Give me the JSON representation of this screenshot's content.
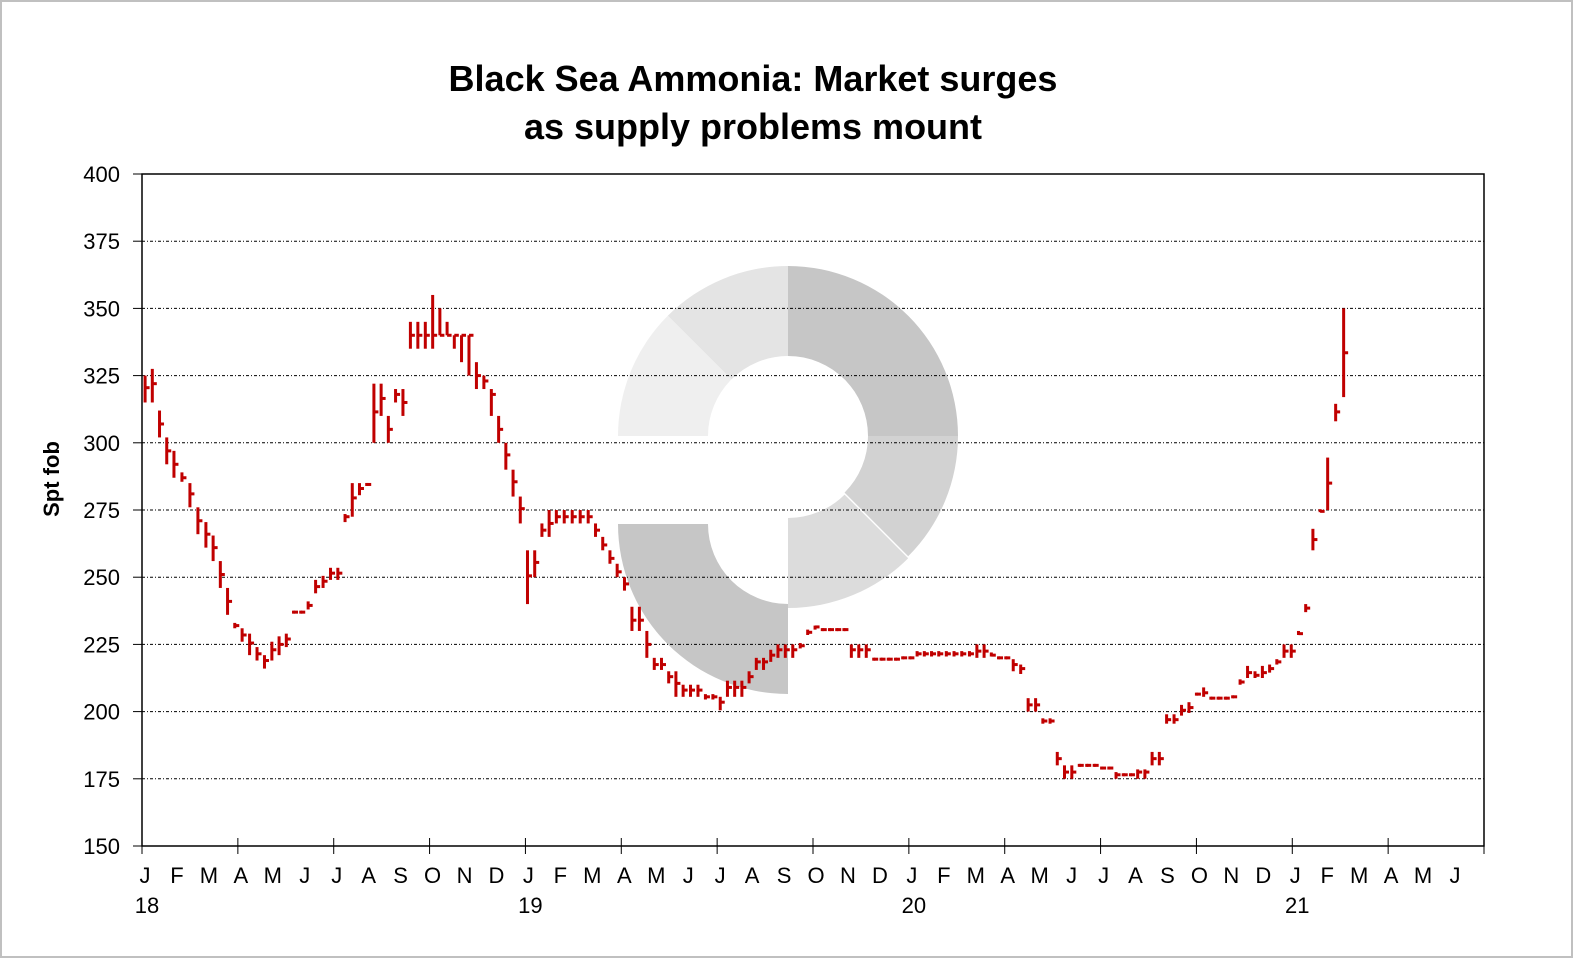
{
  "chart_data": {
    "type": "bar",
    "subtype": "high-low-close",
    "title_lines": [
      "Black Sea Ammonia: Market surges",
      "as supply problems mount"
    ],
    "ylabel": "Spt fob",
    "xlabel": "",
    "ylim": [
      150,
      400
    ],
    "yticks": [
      150,
      175,
      200,
      225,
      250,
      275,
      300,
      325,
      350,
      375,
      400
    ],
    "xlim": [
      "2018-01-01",
      "2021-07-01"
    ],
    "x_month_labels": [
      "J",
      "F",
      "M",
      "A",
      "M",
      "J",
      "J",
      "A",
      "S",
      "O",
      "N",
      "D",
      "J",
      "F",
      "M",
      "A",
      "M",
      "J",
      "J",
      "A",
      "S",
      "O",
      "N",
      "D",
      "J",
      "F",
      "M",
      "A",
      "M",
      "J",
      "J",
      "A",
      "S",
      "O",
      "N",
      "D",
      "J",
      "F",
      "M",
      "A",
      "M",
      "J"
    ],
    "x_year_labels": [
      {
        "month_index": 0,
        "label": "18"
      },
      {
        "month_index": 12,
        "label": "19"
      },
      {
        "month_index": 24,
        "label": "20"
      },
      {
        "month_index": 36,
        "label": "21"
      }
    ],
    "grid": "horizontal dotted",
    "legend": "none",
    "colors": {
      "bars": "#c00000",
      "grid": "#000000",
      "watermark": [
        "#c6c6c6",
        "#d2d2d2",
        "#dcdcdc",
        "#e4e4e4",
        "#efefef"
      ]
    },
    "columns": [
      "date",
      "low",
      "high",
      "mid"
    ],
    "bars": [
      [
        "2018-01-04",
        315,
        325,
        320.5
      ],
      [
        "2018-01-11",
        315,
        327.5,
        322
      ],
      [
        "2018-01-18",
        302,
        312,
        307
      ],
      [
        "2018-01-25",
        292,
        302,
        297
      ],
      [
        "2018-02-01",
        287,
        297,
        292
      ],
      [
        "2018-02-08",
        285.5,
        289,
        287
      ],
      [
        "2018-02-15",
        276,
        285,
        281
      ],
      [
        "2018-02-22",
        266,
        276,
        271
      ],
      [
        "2018-03-01",
        261,
        270.5,
        266
      ],
      [
        "2018-03-08",
        256,
        265.5,
        261
      ],
      [
        "2018-03-15",
        246,
        256,
        251
      ],
      [
        "2018-03-22",
        236,
        246,
        241
      ],
      [
        "2018-03-29",
        231,
        233,
        232
      ],
      [
        "2018-04-05",
        226,
        231,
        228.5
      ],
      [
        "2018-04-12",
        221,
        229,
        225.5
      ],
      [
        "2018-04-19",
        219,
        224,
        221.5
      ],
      [
        "2018-04-26",
        216,
        221,
        219
      ],
      [
        "2018-05-03",
        219,
        226,
        223
      ],
      [
        "2018-05-10",
        221,
        228,
        225
      ],
      [
        "2018-05-17",
        224,
        229,
        227
      ],
      [
        "2018-05-24",
        237,
        237,
        237
      ],
      [
        "2018-05-31",
        237,
        237,
        237
      ],
      [
        "2018-06-07",
        238,
        241,
        239.5
      ],
      [
        "2018-06-14",
        244,
        249,
        246.5
      ],
      [
        "2018-06-21",
        246,
        250.5,
        248.5
      ],
      [
        "2018-06-28",
        249,
        253.5,
        251.5
      ],
      [
        "2018-07-05",
        249,
        253.5,
        251.5
      ],
      [
        "2018-07-12",
        270.5,
        273.5,
        272.5
      ],
      [
        "2018-07-19",
        272.5,
        285,
        279.5
      ],
      [
        "2018-07-26",
        280.5,
        285,
        283
      ],
      [
        "2018-08-02",
        284,
        285,
        284.5
      ],
      [
        "2018-08-09",
        300,
        322,
        311.5
      ],
      [
        "2018-08-16",
        310,
        322,
        316.5
      ],
      [
        "2018-08-23",
        300,
        310,
        305
      ],
      [
        "2018-08-30",
        315,
        320,
        318
      ],
      [
        "2018-09-06",
        310,
        320,
        315
      ],
      [
        "2018-09-13",
        335,
        345,
        340
      ],
      [
        "2018-09-20",
        335,
        345,
        340
      ],
      [
        "2018-09-27",
        335,
        345,
        340
      ],
      [
        "2018-10-04",
        335,
        355,
        340
      ],
      [
        "2018-10-11",
        340,
        350,
        340
      ],
      [
        "2018-10-18",
        340,
        345,
        340
      ],
      [
        "2018-10-25",
        335,
        340,
        340
      ],
      [
        "2018-11-01",
        330,
        340,
        340
      ],
      [
        "2018-11-08",
        325,
        340,
        340
      ],
      [
        "2018-11-15",
        320,
        330,
        325
      ],
      [
        "2018-11-22",
        320,
        325,
        323
      ],
      [
        "2018-11-29",
        310,
        320,
        318
      ],
      [
        "2018-12-06",
        300,
        310,
        305
      ],
      [
        "2018-12-13",
        290,
        300,
        295.5
      ],
      [
        "2018-12-20",
        280,
        290,
        285.5
      ],
      [
        "2018-12-27",
        270,
        280,
        275.5
      ],
      [
        "2019-01-03",
        240,
        260,
        250.5
      ],
      [
        "2019-01-10",
        250,
        260,
        255.5
      ],
      [
        "2019-01-17",
        265,
        270,
        267.5
      ],
      [
        "2019-01-24",
        265,
        275,
        270
      ],
      [
        "2019-01-31",
        270,
        275,
        272.5
      ],
      [
        "2019-02-07",
        270,
        275,
        272.5
      ],
      [
        "2019-02-14",
        270,
        275,
        272.5
      ],
      [
        "2019-02-21",
        270,
        275,
        272.5
      ],
      [
        "2019-02-28",
        270,
        275,
        272.5
      ],
      [
        "2019-03-07",
        265,
        270,
        267.5
      ],
      [
        "2019-03-14",
        260,
        265,
        262
      ],
      [
        "2019-03-21",
        255,
        260,
        257
      ],
      [
        "2019-03-28",
        250,
        255,
        252
      ],
      [
        "2019-04-04",
        245,
        250,
        247.5
      ],
      [
        "2019-04-11",
        230,
        239,
        234
      ],
      [
        "2019-04-18",
        230,
        239,
        234
      ],
      [
        "2019-04-25",
        220,
        230,
        225
      ],
      [
        "2019-05-02",
        215.5,
        220,
        217.5
      ],
      [
        "2019-05-09",
        215.5,
        220,
        217.5
      ],
      [
        "2019-05-16",
        210.5,
        215,
        213
      ],
      [
        "2019-05-23",
        205.5,
        215,
        210.5
      ],
      [
        "2019-05-30",
        205.5,
        210,
        208
      ],
      [
        "2019-06-06",
        205.5,
        210,
        208
      ],
      [
        "2019-06-13",
        205.5,
        210,
        208
      ],
      [
        "2019-06-20",
        204.5,
        206.5,
        205.5
      ],
      [
        "2019-06-27",
        204.5,
        206.5,
        205.5
      ],
      [
        "2019-07-04",
        200.5,
        205.5,
        203.5
      ],
      [
        "2019-07-11",
        205.5,
        211.5,
        209
      ],
      [
        "2019-07-18",
        205.5,
        211.5,
        209
      ],
      [
        "2019-07-25",
        205.5,
        211.5,
        209
      ],
      [
        "2019-08-01",
        210.5,
        215,
        213
      ],
      [
        "2019-08-08",
        215.5,
        220,
        218.5
      ],
      [
        "2019-08-15",
        215.5,
        220,
        218.5
      ],
      [
        "2019-08-22",
        218.5,
        223,
        221
      ],
      [
        "2019-08-29",
        220,
        225,
        223
      ],
      [
        "2019-09-05",
        220,
        225,
        223
      ],
      [
        "2019-09-12",
        220,
        225,
        223
      ],
      [
        "2019-09-19",
        223.5,
        225.5,
        224.5
      ],
      [
        "2019-09-26",
        228.5,
        230.5,
        229.5
      ],
      [
        "2019-10-03",
        230.5,
        232,
        231.5
      ],
      [
        "2019-10-10",
        230.5,
        230.5,
        230.5
      ],
      [
        "2019-10-17",
        230.5,
        230.5,
        230.5
      ],
      [
        "2019-10-24",
        230.5,
        230.5,
        230.5
      ],
      [
        "2019-10-31",
        230.5,
        230.5,
        230.5
      ],
      [
        "2019-11-07",
        220,
        225,
        223
      ],
      [
        "2019-11-14",
        220,
        225,
        223
      ],
      [
        "2019-11-21",
        220,
        225,
        223
      ],
      [
        "2019-11-28",
        219.5,
        219.5,
        219.5
      ],
      [
        "2019-12-05",
        219.5,
        219.5,
        219.5
      ],
      [
        "2019-12-12",
        219.5,
        219.5,
        219.5
      ],
      [
        "2019-12-19",
        219.5,
        219.5,
        219.5
      ],
      [
        "2019-12-26",
        220,
        220,
        220
      ],
      [
        "2020-01-02",
        220,
        220,
        220
      ],
      [
        "2020-01-09",
        220.5,
        222.5,
        221.5
      ],
      [
        "2020-01-16",
        220.5,
        222.5,
        221.5
      ],
      [
        "2020-01-23",
        220.5,
        222.5,
        221.5
      ],
      [
        "2020-01-30",
        220.5,
        222.5,
        221.5
      ],
      [
        "2020-02-06",
        220.5,
        222.5,
        221.5
      ],
      [
        "2020-02-13",
        220.5,
        222.5,
        221.5
      ],
      [
        "2020-02-20",
        220.5,
        222.5,
        221.5
      ],
      [
        "2020-02-27",
        220.5,
        222.5,
        221.5
      ],
      [
        "2020-03-05",
        220,
        225,
        222.5
      ],
      [
        "2020-03-12",
        220,
        225,
        222.5
      ],
      [
        "2020-03-19",
        220.5,
        222,
        221
      ],
      [
        "2020-03-26",
        220,
        220,
        220
      ],
      [
        "2020-04-02",
        220,
        220,
        220
      ],
      [
        "2020-04-09",
        215,
        219.5,
        217.5
      ],
      [
        "2020-04-16",
        214,
        217.5,
        216
      ],
      [
        "2020-04-23",
        200,
        205,
        202.5
      ],
      [
        "2020-04-30",
        200,
        205,
        202.5
      ],
      [
        "2020-05-07",
        195.5,
        197.5,
        196.5
      ],
      [
        "2020-05-14",
        195.5,
        197.5,
        196.5
      ],
      [
        "2020-05-21",
        180,
        185,
        182.5
      ],
      [
        "2020-05-28",
        175,
        180,
        177.5
      ],
      [
        "2020-06-04",
        175,
        180,
        177.5
      ],
      [
        "2020-06-11",
        180,
        180,
        180
      ],
      [
        "2020-06-18",
        180,
        180,
        180
      ],
      [
        "2020-06-25",
        180,
        180,
        180
      ],
      [
        "2020-07-02",
        178.5,
        179.5,
        179
      ],
      [
        "2020-07-09",
        178.5,
        179.5,
        179
      ],
      [
        "2020-07-16",
        175,
        177.5,
        176.5
      ],
      [
        "2020-07-23",
        176.5,
        176.5,
        176.5
      ],
      [
        "2020-07-30",
        176.5,
        176.5,
        176.5
      ],
      [
        "2020-08-06",
        175,
        178.5,
        177.5
      ],
      [
        "2020-08-13",
        175,
        178.5,
        177.5
      ],
      [
        "2020-08-20",
        180,
        185,
        182.5
      ],
      [
        "2020-08-27",
        180,
        185,
        182.5
      ],
      [
        "2020-09-03",
        195.5,
        199,
        197
      ],
      [
        "2020-09-10",
        195.5,
        199,
        197
      ],
      [
        "2020-09-17",
        198.5,
        202.5,
        200.5
      ],
      [
        "2020-09-24",
        199.5,
        203.5,
        201.5
      ],
      [
        "2020-10-01",
        206.5,
        206.5,
        206.5
      ],
      [
        "2020-10-08",
        205.5,
        209,
        207
      ],
      [
        "2020-10-15",
        205,
        205,
        205
      ],
      [
        "2020-10-22",
        205,
        205,
        205
      ],
      [
        "2020-10-29",
        205,
        205,
        205
      ],
      [
        "2020-11-05",
        205.5,
        205.5,
        205.5
      ],
      [
        "2020-11-12",
        210,
        212,
        211
      ],
      [
        "2020-11-19",
        212.5,
        217,
        214.5
      ],
      [
        "2020-11-26",
        212.5,
        215,
        213.5
      ],
      [
        "2020-12-03",
        212.5,
        217,
        214.5
      ],
      [
        "2020-12-10",
        214.5,
        217.5,
        216
      ],
      [
        "2020-12-17",
        217.5,
        219.5,
        218.5
      ],
      [
        "2020-12-24",
        220,
        225,
        222.5
      ],
      [
        "2020-12-31",
        220,
        225,
        222.5
      ],
      [
        "2021-01-07",
        228.5,
        230,
        229
      ],
      [
        "2021-01-14",
        237,
        240,
        238.5
      ],
      [
        "2021-01-21",
        260,
        268,
        264
      ],
      [
        "2021-01-28",
        274.5,
        275,
        274.5
      ],
      [
        "2021-02-04",
        275,
        294.5,
        285
      ],
      [
        "2021-02-11",
        308,
        314.5,
        311.5
      ],
      [
        "2021-02-18",
        317,
        350,
        333.5
      ]
    ]
  }
}
